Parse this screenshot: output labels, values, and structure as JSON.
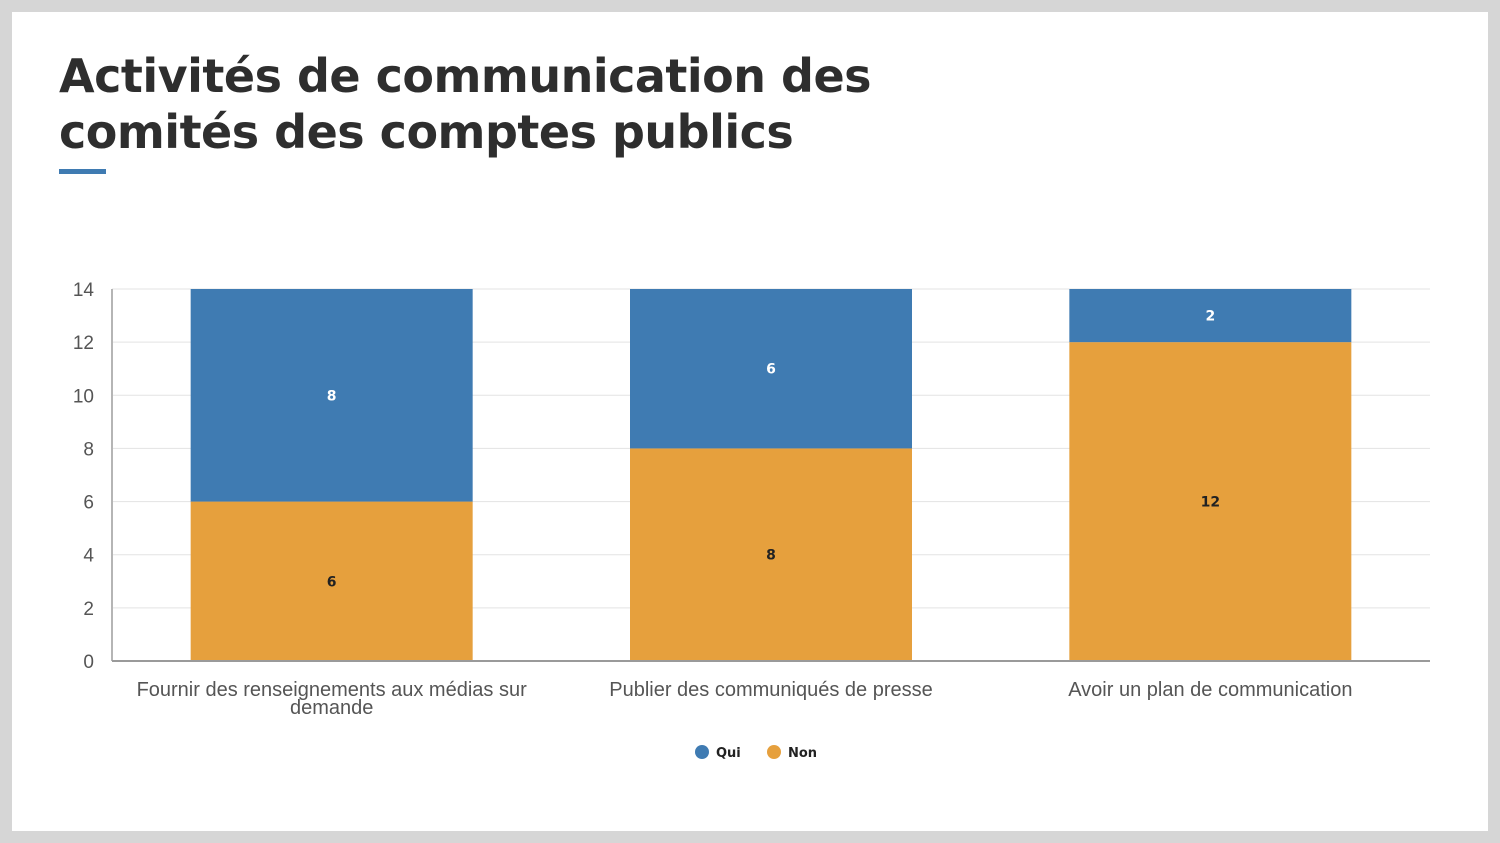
{
  "slide": {
    "title_line1": "Activités de communication des",
    "title_line2": "comités des comptes publics"
  },
  "colors": {
    "accent": "#3f7bb2",
    "qui": "#3f7bb2",
    "non": "#e6a03d"
  },
  "chart_data": {
    "type": "bar",
    "stacked": true,
    "categories": [
      [
        "Fournir des renseignements aux médias sur",
        "demande"
      ],
      [
        "Publier des communiqués de presse"
      ],
      [
        "Avoir un plan de communication"
      ]
    ],
    "series": [
      {
        "name": "Non",
        "color": "#e6a03d",
        "label_color": "#222222",
        "values": [
          6,
          8,
          12
        ]
      },
      {
        "name": "Qui",
        "color": "#3f7bb2",
        "label_color": "#ffffff",
        "values": [
          8,
          6,
          2
        ]
      }
    ],
    "legend_order": [
      "Qui",
      "Non"
    ],
    "ylim": [
      0,
      14
    ],
    "yticks": [
      0,
      2,
      4,
      6,
      8,
      10,
      12,
      14
    ],
    "grid": true,
    "legend": "bottom-center"
  }
}
